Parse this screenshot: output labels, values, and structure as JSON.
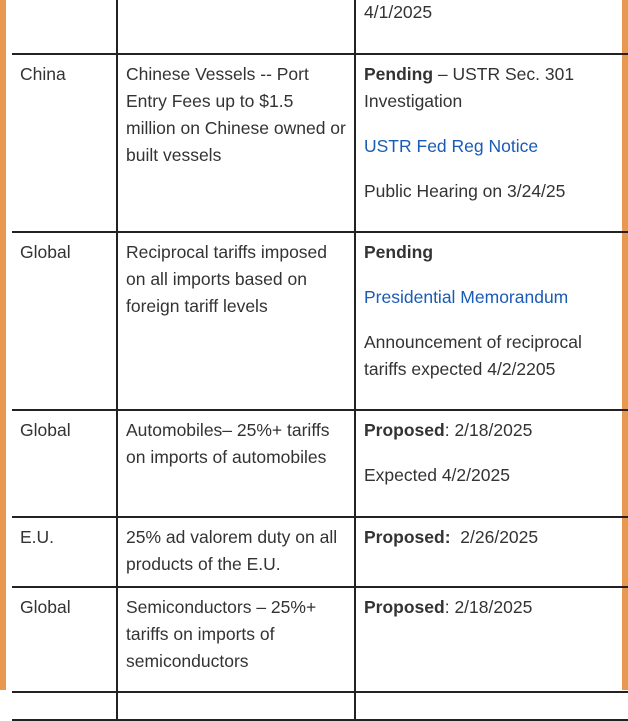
{
  "rows": [
    {
      "region": "",
      "action": "",
      "status_bold": "",
      "status_rest": "4/1/2025",
      "link": "",
      "note": ""
    },
    {
      "region": "China",
      "action": "Chinese Vessels -- Port Entry Fees up to $1.5 million on Chinese owned or built vessels",
      "status_bold": "Pending",
      "status_rest": " – USTR Sec. 301 Investigation",
      "link": "USTR Fed Reg Notice",
      "note": "Public Hearing on 3/24/25"
    },
    {
      "region": "Global",
      "action": "Reciprocal tariffs imposed on all imports based on foreign tariff levels",
      "status_bold": "Pending",
      "status_rest": "",
      "link": "Presidential Memorandum",
      "note": "Announcement of reciprocal tariffs expected 4/2/2205"
    },
    {
      "region": "Global",
      "action": "Automobiles– 25%+ tariffs on imports of automobiles",
      "status_bold": "Proposed",
      "status_rest": ": 2/18/2025",
      "link": "",
      "note": "Expected 4/2/2025"
    },
    {
      "region": "E.U.",
      "action": "25% ad valorem duty on all products of the E.U.",
      "status_bold": "Proposed:",
      "status_rest": "  2/26/2025",
      "link": "",
      "note": ""
    },
    {
      "region": "Global",
      "action": "Semiconductors – 25%+ tariffs on imports of semiconductors",
      "status_bold": "Proposed",
      "status_rest": ": 2/18/2025",
      "link": "",
      "note": ""
    }
  ],
  "colors": {
    "frame_border": "#e8994f",
    "link": "#1a5bb5",
    "text": "#333333",
    "grid": "#222222"
  }
}
